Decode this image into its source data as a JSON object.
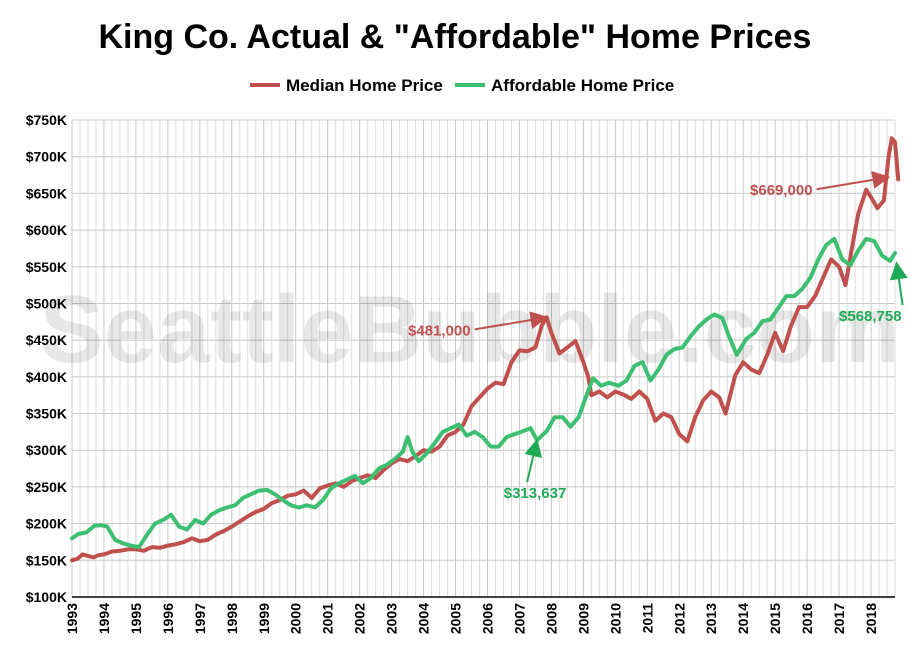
{
  "chart_data": {
    "type": "line",
    "title": "King Co. Actual & \"Affordable\" Home Prices",
    "watermark": "SeattleBubble.com",
    "legend": {
      "placement": "top-center"
    },
    "grid": {
      "x": true,
      "y": true,
      "x_minor": "quarterly"
    },
    "xlim": [
      1993.0,
      2018.75
    ],
    "ylim": [
      100000,
      750000
    ],
    "x_ticks": [
      "1993",
      "1994",
      "1995",
      "1996",
      "1997",
      "1998",
      "1999",
      "2000",
      "2001",
      "2002",
      "2003",
      "2004",
      "2005",
      "2006",
      "2007",
      "2008",
      "2009",
      "2010",
      "2011",
      "2012",
      "2013",
      "2014",
      "2015",
      "2016",
      "2017",
      "2018"
    ],
    "y_ticks": [
      {
        "value": 100000,
        "label": "$100K"
      },
      {
        "value": 150000,
        "label": "$150K"
      },
      {
        "value": 200000,
        "label": "$200K"
      },
      {
        "value": 250000,
        "label": "$250K"
      },
      {
        "value": 300000,
        "label": "$300K"
      },
      {
        "value": 350000,
        "label": "$350K"
      },
      {
        "value": 400000,
        "label": "$400K"
      },
      {
        "value": 450000,
        "label": "$450K"
      },
      {
        "value": 500000,
        "label": "$500K"
      },
      {
        "value": 550000,
        "label": "$550K"
      },
      {
        "value": 600000,
        "label": "$600K"
      },
      {
        "value": 650000,
        "label": "$650K"
      },
      {
        "value": 700000,
        "label": "$700K"
      },
      {
        "value": 750000,
        "label": "$750K"
      }
    ],
    "series": [
      {
        "name": "Median Home Price",
        "color": "#c0504d",
        "points": [
          [
            1993.0,
            150000
          ],
          [
            1993.17,
            152000
          ],
          [
            1993.33,
            158000
          ],
          [
            1993.5,
            156000
          ],
          [
            1993.67,
            154000
          ],
          [
            1993.83,
            157000
          ],
          [
            1994.0,
            158000
          ],
          [
            1994.25,
            162000
          ],
          [
            1994.5,
            163000
          ],
          [
            1994.75,
            165000
          ],
          [
            1995.0,
            165000
          ],
          [
            1995.25,
            163000
          ],
          [
            1995.5,
            168000
          ],
          [
            1995.75,
            167000
          ],
          [
            1996.0,
            170000
          ],
          [
            1996.25,
            172000
          ],
          [
            1996.5,
            175000
          ],
          [
            1996.75,
            180000
          ],
          [
            1997.0,
            176000
          ],
          [
            1997.25,
            178000
          ],
          [
            1997.5,
            185000
          ],
          [
            1997.75,
            190000
          ],
          [
            1998.0,
            196000
          ],
          [
            1998.25,
            203000
          ],
          [
            1998.5,
            210000
          ],
          [
            1998.75,
            216000
          ],
          [
            1999.0,
            220000
          ],
          [
            1999.25,
            228000
          ],
          [
            1999.5,
            232000
          ],
          [
            1999.75,
            238000
          ],
          [
            2000.0,
            240000
          ],
          [
            2000.25,
            245000
          ],
          [
            2000.5,
            235000
          ],
          [
            2000.75,
            248000
          ],
          [
            2001.0,
            252000
          ],
          [
            2001.25,
            255000
          ],
          [
            2001.5,
            250000
          ],
          [
            2001.75,
            258000
          ],
          [
            2002.0,
            262000
          ],
          [
            2002.25,
            266000
          ],
          [
            2002.5,
            262000
          ],
          [
            2002.75,
            273000
          ],
          [
            2003.0,
            282000
          ],
          [
            2003.25,
            288000
          ],
          [
            2003.5,
            285000
          ],
          [
            2003.75,
            292000
          ],
          [
            2004.0,
            300000
          ],
          [
            2004.25,
            298000
          ],
          [
            2004.5,
            305000
          ],
          [
            2004.75,
            320000
          ],
          [
            2005.0,
            325000
          ],
          [
            2005.25,
            335000
          ],
          [
            2005.5,
            360000
          ],
          [
            2005.75,
            372000
          ],
          [
            2006.0,
            384000
          ],
          [
            2006.25,
            392000
          ],
          [
            2006.5,
            390000
          ],
          [
            2006.75,
            420000
          ],
          [
            2007.0,
            436000
          ],
          [
            2007.25,
            435000
          ],
          [
            2007.5,
            440000
          ],
          [
            2007.7,
            470000
          ],
          [
            2007.85,
            481000
          ],
          [
            2008.0,
            460000
          ],
          [
            2008.25,
            432000
          ],
          [
            2008.5,
            440000
          ],
          [
            2008.75,
            449000
          ],
          [
            2009.0,
            420000
          ],
          [
            2009.15,
            400000
          ],
          [
            2009.25,
            375000
          ],
          [
            2009.5,
            380000
          ],
          [
            2009.75,
            372000
          ],
          [
            2010.0,
            380000
          ],
          [
            2010.25,
            376000
          ],
          [
            2010.5,
            370000
          ],
          [
            2010.75,
            380000
          ],
          [
            2011.0,
            370000
          ],
          [
            2011.25,
            340000
          ],
          [
            2011.5,
            350000
          ],
          [
            2011.75,
            345000
          ],
          [
            2012.0,
            322000
          ],
          [
            2012.25,
            312000
          ],
          [
            2012.5,
            345000
          ],
          [
            2012.75,
            368000
          ],
          [
            2013.0,
            380000
          ],
          [
            2013.25,
            372000
          ],
          [
            2013.45,
            350000
          ],
          [
            2013.75,
            402000
          ],
          [
            2014.0,
            420000
          ],
          [
            2014.25,
            410000
          ],
          [
            2014.5,
            405000
          ],
          [
            2014.75,
            430000
          ],
          [
            2015.0,
            460000
          ],
          [
            2015.25,
            435000
          ],
          [
            2015.5,
            470000
          ],
          [
            2015.75,
            495000
          ],
          [
            2016.0,
            495000
          ],
          [
            2016.25,
            510000
          ],
          [
            2016.5,
            535000
          ],
          [
            2016.75,
            560000
          ],
          [
            2017.0,
            550000
          ],
          [
            2017.2,
            525000
          ],
          [
            2017.4,
            575000
          ],
          [
            2017.6,
            622000
          ],
          [
            2017.85,
            655000
          ],
          [
            2018.0,
            645000
          ],
          [
            2018.2,
            630000
          ],
          [
            2018.4,
            640000
          ],
          [
            2018.55,
            700000
          ],
          [
            2018.65,
            725000
          ],
          [
            2018.75,
            720000
          ],
          [
            2018.85,
            669000
          ]
        ]
      },
      {
        "name": "Affordable Home Price",
        "color": "#3dbf72",
        "points": [
          [
            1993.0,
            180000
          ],
          [
            1993.2,
            186000
          ],
          [
            1993.45,
            188000
          ],
          [
            1993.7,
            197000
          ],
          [
            1993.9,
            198000
          ],
          [
            1994.1,
            196000
          ],
          [
            1994.35,
            178000
          ],
          [
            1994.6,
            173000
          ],
          [
            1994.85,
            170000
          ],
          [
            1995.1,
            168000
          ],
          [
            1995.35,
            185000
          ],
          [
            1995.6,
            200000
          ],
          [
            1995.85,
            205000
          ],
          [
            1996.1,
            212000
          ],
          [
            1996.35,
            196000
          ],
          [
            1996.6,
            192000
          ],
          [
            1996.85,
            205000
          ],
          [
            1997.1,
            200000
          ],
          [
            1997.35,
            212000
          ],
          [
            1997.6,
            218000
          ],
          [
            1997.85,
            222000
          ],
          [
            1998.1,
            225000
          ],
          [
            1998.35,
            235000
          ],
          [
            1998.6,
            240000
          ],
          [
            1998.85,
            245000
          ],
          [
            1999.1,
            246000
          ],
          [
            1999.35,
            240000
          ],
          [
            1999.6,
            232000
          ],
          [
            1999.85,
            225000
          ],
          [
            2000.1,
            222000
          ],
          [
            2000.35,
            225000
          ],
          [
            2000.6,
            222000
          ],
          [
            2000.85,
            232000
          ],
          [
            2001.1,
            248000
          ],
          [
            2001.35,
            255000
          ],
          [
            2001.6,
            260000
          ],
          [
            2001.85,
            265000
          ],
          [
            2002.1,
            255000
          ],
          [
            2002.35,
            262000
          ],
          [
            2002.6,
            275000
          ],
          [
            2002.85,
            280000
          ],
          [
            2003.1,
            288000
          ],
          [
            2003.35,
            298000
          ],
          [
            2003.5,
            318000
          ],
          [
            2003.65,
            298000
          ],
          [
            2003.85,
            285000
          ],
          [
            2004.1,
            296000
          ],
          [
            2004.35,
            310000
          ],
          [
            2004.6,
            325000
          ],
          [
            2004.85,
            330000
          ],
          [
            2005.1,
            335000
          ],
          [
            2005.35,
            320000
          ],
          [
            2005.6,
            325000
          ],
          [
            2005.85,
            318000
          ],
          [
            2006.1,
            305000
          ],
          [
            2006.35,
            305000
          ],
          [
            2006.6,
            318000
          ],
          [
            2006.85,
            322000
          ],
          [
            2007.1,
            326000
          ],
          [
            2007.35,
            330000
          ],
          [
            2007.55,
            313637
          ],
          [
            2007.85,
            326000
          ],
          [
            2008.1,
            345000
          ],
          [
            2008.35,
            345000
          ],
          [
            2008.6,
            332000
          ],
          [
            2008.85,
            345000
          ],
          [
            2009.1,
            375000
          ],
          [
            2009.3,
            398000
          ],
          [
            2009.55,
            388000
          ],
          [
            2009.8,
            392000
          ],
          [
            2010.1,
            388000
          ],
          [
            2010.35,
            395000
          ],
          [
            2010.6,
            415000
          ],
          [
            2010.85,
            420000
          ],
          [
            2011.1,
            395000
          ],
          [
            2011.35,
            410000
          ],
          [
            2011.6,
            430000
          ],
          [
            2011.85,
            438000
          ],
          [
            2012.1,
            440000
          ],
          [
            2012.35,
            455000
          ],
          [
            2012.6,
            468000
          ],
          [
            2012.85,
            478000
          ],
          [
            2013.1,
            485000
          ],
          [
            2013.35,
            480000
          ],
          [
            2013.55,
            456000
          ],
          [
            2013.8,
            430000
          ],
          [
            2014.1,
            452000
          ],
          [
            2014.35,
            460000
          ],
          [
            2014.6,
            476000
          ],
          [
            2014.85,
            478000
          ],
          [
            2015.1,
            494000
          ],
          [
            2015.35,
            510000
          ],
          [
            2015.6,
            510000
          ],
          [
            2015.85,
            520000
          ],
          [
            2016.1,
            535000
          ],
          [
            2016.35,
            560000
          ],
          [
            2016.6,
            580000
          ],
          [
            2016.85,
            588000
          ],
          [
            2017.1,
            560000
          ],
          [
            2017.35,
            552000
          ],
          [
            2017.6,
            572000
          ],
          [
            2017.85,
            588000
          ],
          [
            2018.1,
            585000
          ],
          [
            2018.35,
            565000
          ],
          [
            2018.6,
            558000
          ],
          [
            2018.75,
            568758
          ]
        ]
      }
    ],
    "annotations": [
      {
        "text": "$481,000",
        "series": 0,
        "point": [
          2007.85,
          481000
        ],
        "color": "#c0504d",
        "label_side": "left"
      },
      {
        "text": "$313,637",
        "series": 1,
        "point": [
          2007.55,
          313637
        ],
        "color": "#1faa55",
        "label_side": "below-left"
      },
      {
        "text": "$669,000",
        "series": 0,
        "point": [
          2018.55,
          672000
        ],
        "color": "#c0504d",
        "label_side": "left"
      },
      {
        "text": "$568,758",
        "series": 1,
        "point": [
          2018.8,
          555000
        ],
        "color": "#1faa55",
        "label_side": "below"
      }
    ]
  }
}
